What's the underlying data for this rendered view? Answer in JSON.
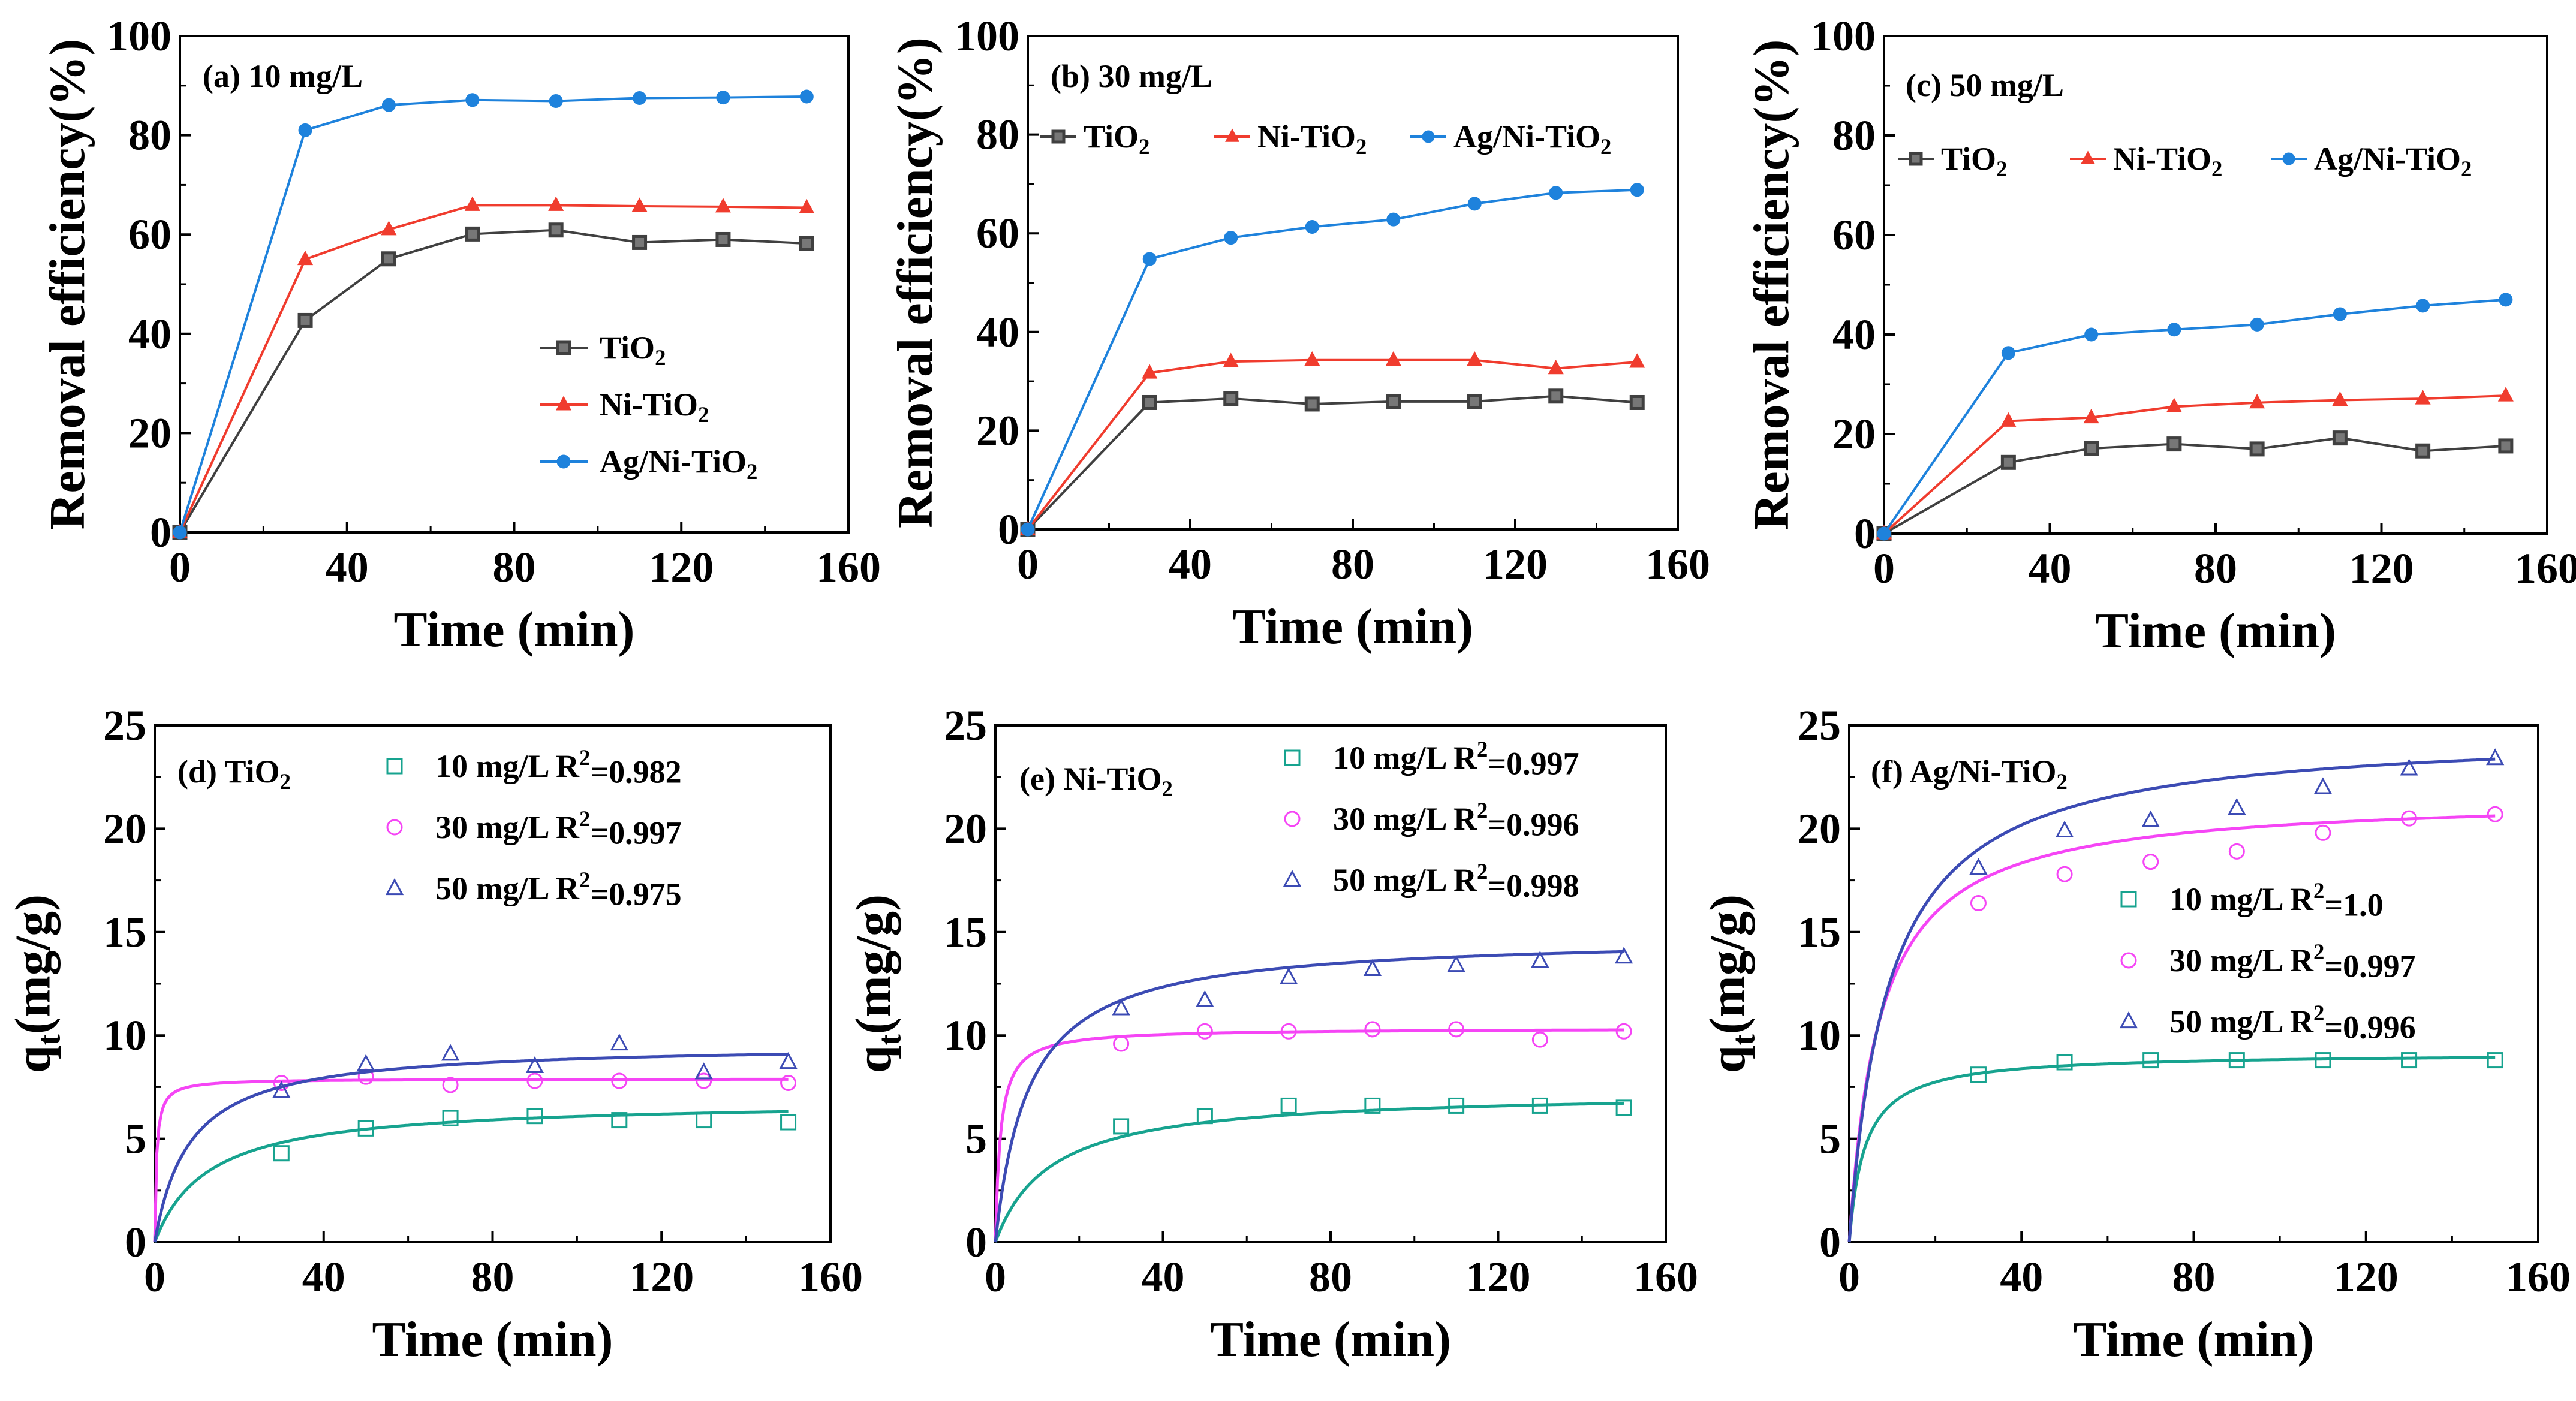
{
  "chart_data": [
    {
      "id": "a",
      "type": "line",
      "label": "(a) 10 mg/L",
      "xlabel": "Time (min)",
      "ylabel": "Removal efficiency(%)",
      "xlim": [
        0,
        160
      ],
      "ylim": [
        0,
        100
      ],
      "xticks": [
        "0",
        "40",
        "80",
        "120",
        "160"
      ],
      "yticks": [
        "0",
        "20",
        "40",
        "60",
        "80",
        "100"
      ],
      "legend_position": "lower-right",
      "x": [
        0,
        30,
        50,
        70,
        90,
        110,
        130,
        150
      ],
      "series": [
        {
          "name": "TiO",
          "sub": "2",
          "color": "#404040",
          "marker": "square",
          "values": [
            0,
            42.7,
            55.1,
            60.1,
            60.9,
            58.4,
            59.0,
            58.2
          ]
        },
        {
          "name": "Ni-TiO",
          "sub": "2",
          "color": "#f03c2e",
          "marker": "triangle",
          "values": [
            0,
            55.0,
            61.0,
            65.9,
            65.9,
            65.7,
            65.6,
            65.4
          ]
        },
        {
          "name": "Ag/Ni-TiO",
          "sub": "2",
          "color": "#1e82dc",
          "marker": "circle",
          "values": [
            0,
            81.0,
            86.1,
            87.1,
            86.9,
            87.5,
            87.6,
            87.8
          ]
        }
      ]
    },
    {
      "id": "b",
      "type": "line",
      "label": "(b) 30 mg/L",
      "xlabel": "Time (min)",
      "ylabel": "Removal efficiency(%)",
      "xlim": [
        0,
        160
      ],
      "ylim": [
        0,
        100
      ],
      "xticks": [
        "0",
        "40",
        "80",
        "120",
        "160"
      ],
      "yticks": [
        "0",
        "20",
        "40",
        "60",
        "80",
        "100"
      ],
      "legend_position": "top",
      "x": [
        0,
        30,
        50,
        70,
        90,
        110,
        130,
        150
      ],
      "series": [
        {
          "name": "TiO",
          "sub": "2",
          "color": "#404040",
          "marker": "square",
          "values": [
            0,
            25.7,
            26.5,
            25.4,
            25.9,
            25.9,
            27.0,
            25.7
          ]
        },
        {
          "name": "Ni-TiO",
          "sub": "2",
          "color": "#f03c2e",
          "marker": "triangle",
          "values": [
            0,
            31.7,
            34.0,
            34.3,
            34.3,
            34.3,
            32.6,
            33.9
          ]
        },
        {
          "name": "Ag/Ni-TiO",
          "sub": "2",
          "color": "#1e82dc",
          "marker": "circle",
          "values": [
            0,
            54.8,
            59.1,
            61.3,
            62.8,
            66.0,
            68.2,
            68.8
          ]
        }
      ]
    },
    {
      "id": "c",
      "type": "line",
      "label": "(c) 50 mg/L",
      "xlabel": "Time (min)",
      "ylabel": "Removal efficiency(%)",
      "xlim": [
        0,
        160
      ],
      "ylim": [
        0,
        100
      ],
      "xticks": [
        "0",
        "40",
        "80",
        "120",
        "160"
      ],
      "yticks": [
        "0",
        "20",
        "40",
        "60",
        "80",
        "100"
      ],
      "legend_position": "top",
      "x": [
        0,
        30,
        50,
        70,
        90,
        110,
        130,
        150
      ],
      "series": [
        {
          "name": "TiO",
          "sub": "2",
          "color": "#404040",
          "marker": "square",
          "values": [
            0,
            14.3,
            17.1,
            18.0,
            17.0,
            19.2,
            16.6,
            17.6
          ]
        },
        {
          "name": "Ni-TiO",
          "sub": "2",
          "color": "#f03c2e",
          "marker": "triangle",
          "values": [
            0,
            22.6,
            23.3,
            25.5,
            26.3,
            26.8,
            27.1,
            27.7
          ]
        },
        {
          "name": "Ag/Ni-TiO",
          "sub": "2",
          "color": "#1e82dc",
          "marker": "circle",
          "values": [
            0,
            36.3,
            40.0,
            41.0,
            42.0,
            44.1,
            45.8,
            47.0
          ]
        }
      ]
    },
    {
      "id": "d",
      "type": "scatter",
      "label": "(d) TiO",
      "label_sub": "2",
      "xlabel": "Time (min)",
      "ylabel": "q",
      "ylabel_sub": "t",
      "ylabel_rest": "(mg/g)",
      "xlim": [
        0,
        160
      ],
      "ylim": [
        0,
        25
      ],
      "xticks": [
        "0",
        "40",
        "80",
        "120",
        "160"
      ],
      "yticks": [
        "0",
        "5",
        "10",
        "15",
        "20",
        "25"
      ],
      "legend_position": "top-right",
      "x": [
        30,
        50,
        70,
        90,
        110,
        130,
        150
      ],
      "series": [
        {
          "name": "10 mg/L R",
          "sup": "2",
          "r2": "=0.982",
          "color": "#17a38f",
          "marker": "square",
          "values": [
            4.3,
            5.5,
            6.0,
            6.1,
            5.9,
            5.9,
            5.8
          ],
          "fit": {
            "qe": 6.85,
            "k": 0.0115
          }
        },
        {
          "name": "30 mg/L R",
          "sup": "2",
          "r2": "=0.997",
          "color": "#f545f5",
          "marker": "circle",
          "values": [
            7.7,
            8.0,
            7.6,
            7.8,
            7.8,
            7.8,
            7.7
          ],
          "fit": {
            "qe": 7.9,
            "k": 0.3
          }
        },
        {
          "name": "50 mg/L R",
          "sup": "2",
          "r2": "=0.975",
          "color": "#3c4bb4",
          "marker": "triangle",
          "values": [
            7.3,
            8.6,
            9.1,
            8.5,
            9.6,
            8.2,
            8.7
          ],
          "fit": {
            "qe": 9.6,
            "k": 0.0125
          }
        }
      ]
    },
    {
      "id": "e",
      "type": "scatter",
      "label": "(e) Ni-TiO",
      "label_sub": "2",
      "xlabel": "Time (min)",
      "ylabel": "q",
      "ylabel_sub": "t",
      "ylabel_rest": "(mg/g)",
      "xlim": [
        0,
        160
      ],
      "ylim": [
        0,
        25
      ],
      "xticks": [
        "0",
        "40",
        "80",
        "120",
        "160"
      ],
      "yticks": [
        "0",
        "5",
        "10",
        "15",
        "20",
        "25"
      ],
      "legend_position": "top-right",
      "x": [
        30,
        50,
        70,
        90,
        110,
        130,
        150
      ],
      "series": [
        {
          "name": "10 mg/L R",
          "sup": "2",
          "r2": "=0.997",
          "color": "#17a38f",
          "marker": "square",
          "values": [
            5.6,
            6.1,
            6.6,
            6.6,
            6.6,
            6.6,
            6.5
          ],
          "fit": {
            "qe": 7.3,
            "k": 0.0105
          }
        },
        {
          "name": "30 mg/L R",
          "sup": "2",
          "r2": "=0.996",
          "color": "#f545f5",
          "marker": "circle",
          "values": [
            9.6,
            10.2,
            10.2,
            10.3,
            10.3,
            9.8,
            10.2
          ],
          "fit": {
            "qe": 10.35,
            "k": 0.08
          }
        },
        {
          "name": "50 mg/L R",
          "sup": "2",
          "r2": "=0.998",
          "color": "#3c4bb4",
          "marker": "triangle",
          "values": [
            11.3,
            11.7,
            12.8,
            13.2,
            13.4,
            13.6,
            13.8
          ],
          "fit": {
            "qe": 14.8,
            "k": 0.0085
          }
        }
      ]
    },
    {
      "id": "f",
      "type": "scatter",
      "label": "(f) Ag/Ni-TiO",
      "label_sub": "2",
      "xlabel": "Time (min)",
      "ylabel": "q",
      "ylabel_sub": "t",
      "ylabel_rest": "(mg/g)",
      "xlim": [
        0,
        160
      ],
      "ylim": [
        0,
        25
      ],
      "xticks": [
        "0",
        "40",
        "80",
        "120",
        "160"
      ],
      "yticks": [
        "0",
        "5",
        "10",
        "15",
        "20",
        "25"
      ],
      "legend_position": "center-right",
      "x": [
        30,
        50,
        70,
        90,
        110,
        130,
        150
      ],
      "series": [
        {
          "name": "10 mg/L R",
          "sup": "2",
          "r2": "=1.0",
          "color": "#17a38f",
          "marker": "square",
          "values": [
            8.1,
            8.7,
            8.8,
            8.8,
            8.8,
            8.8,
            8.8
          ],
          "fit": {
            "qe": 9.15,
            "k": 0.03
          }
        },
        {
          "name": "30 mg/L R",
          "sup": "2",
          "r2": "=0.997",
          "color": "#f545f5",
          "marker": "circle",
          "values": [
            16.4,
            17.8,
            18.4,
            18.9,
            19.8,
            20.5,
            20.7
          ],
          "fit": {
            "qe": 21.6,
            "k": 0.0065
          }
        },
        {
          "name": "50 mg/L R",
          "sup": "2",
          "r2": "=0.996",
          "color": "#3c4bb4",
          "marker": "triangle",
          "values": [
            18.1,
            19.9,
            20.4,
            21.0,
            22.0,
            22.9,
            23.4
          ],
          "fit": {
            "qe": 24.8,
            "k": 0.0044
          }
        }
      ]
    }
  ]
}
